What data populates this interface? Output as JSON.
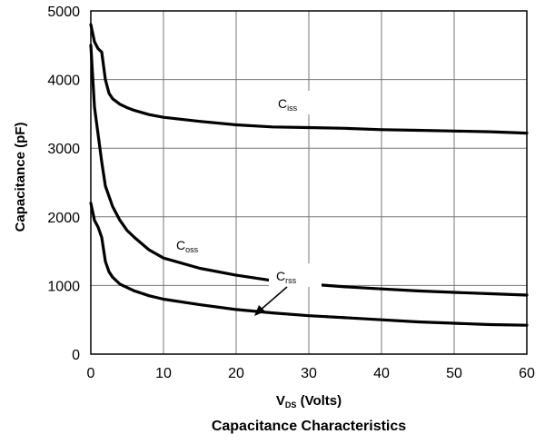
{
  "chart_data": {
    "type": "line",
    "title": "Capacitance Characteristics",
    "xlabel": {
      "main": "V",
      "sub": "DS",
      "rest": " (Volts)"
    },
    "ylabel": "Capacitance (pF)",
    "xlim": [
      0,
      60
    ],
    "ylim": [
      0,
      5000
    ],
    "x_ticks": [
      0,
      10,
      20,
      30,
      40,
      50,
      60
    ],
    "y_ticks": [
      0,
      1000,
      2000,
      3000,
      4000,
      5000
    ],
    "grid": true,
    "series": [
      {
        "name": {
          "main": "C",
          "sub": "iss"
        },
        "x": [
          0,
          0.5,
          1,
          1.5,
          2,
          2.5,
          3,
          4,
          5,
          6,
          8,
          10,
          15,
          20,
          25,
          30,
          35,
          40,
          45,
          50,
          55,
          60
        ],
        "y": [
          4800,
          4550,
          4450,
          4400,
          4000,
          3800,
          3720,
          3640,
          3590,
          3550,
          3490,
          3450,
          3390,
          3340,
          3310,
          3300,
          3290,
          3270,
          3260,
          3250,
          3240,
          3220
        ]
      },
      {
        "name": {
          "main": "C",
          "sub": "oss"
        },
        "x": [
          0,
          0.5,
          1,
          1.5,
          2,
          3,
          4,
          5,
          6,
          8,
          10,
          15,
          20,
          25,
          30,
          35,
          40,
          45,
          50,
          55,
          60
        ],
        "y": [
          4500,
          3600,
          3200,
          2800,
          2450,
          2150,
          1950,
          1800,
          1700,
          1520,
          1400,
          1250,
          1150,
          1070,
          1020,
          980,
          950,
          920,
          900,
          880,
          860
        ]
      },
      {
        "name": {
          "main": "C",
          "sub": "rss"
        },
        "x": [
          0,
          0.5,
          1,
          1.5,
          2,
          2.5,
          3,
          4,
          5,
          6,
          8,
          10,
          15,
          20,
          25,
          30,
          35,
          40,
          45,
          50,
          55,
          60
        ],
        "y": [
          2200,
          1950,
          1850,
          1700,
          1350,
          1200,
          1120,
          1020,
          970,
          920,
          850,
          800,
          720,
          650,
          600,
          560,
          530,
          500,
          470,
          450,
          430,
          420
        ]
      }
    ]
  }
}
